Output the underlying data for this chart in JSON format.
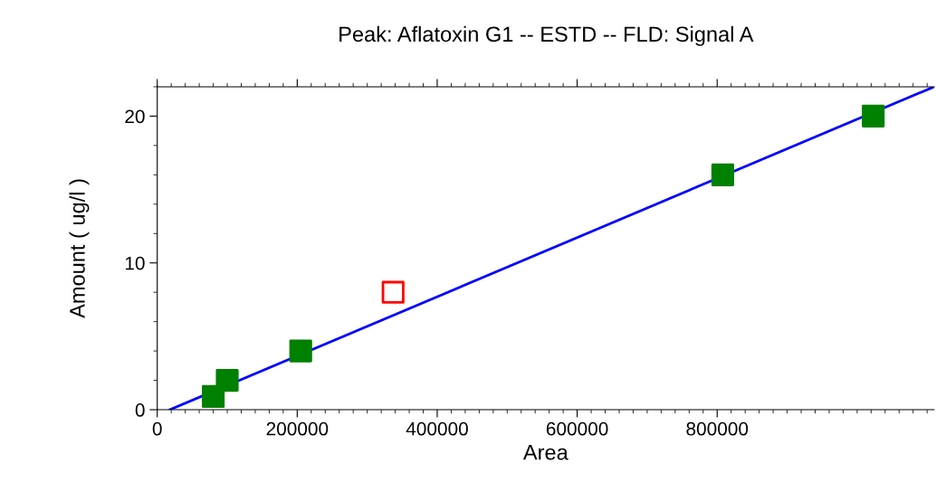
{
  "chart_data": {
    "type": "scatter",
    "title": "Peak: Aflatoxin G1 -- ESTD -- FLD: Signal A",
    "xlabel": "Area",
    "ylabel": "Amount ( ug/l )",
    "series": [
      {
        "color": "#008000",
        "x": [
          80000,
          100000,
          205000,
          808000,
          1023000
        ],
        "values": [
          0.9,
          2,
          4,
          16,
          20
        ],
        "marker": "square"
      },
      {
        "color": "#ff0000",
        "x": [
          337000
        ],
        "values": [
          8
        ],
        "marker": "square"
      },
      {
        "type": "line",
        "color": "#0000ff",
        "x": [
          18000,
          1110000
        ],
        "values": [
          0,
          22
        ],
        "marker": "none"
      }
    ],
    "xlim": [
      0,
      1110000
    ],
    "ylim": [
      0,
      22
    ],
    "xticks": [
      0,
      200000,
      400000,
      600000,
      800000
    ],
    "yticks": [
      0,
      10,
      20
    ],
    "grid": false,
    "legend": false
  }
}
